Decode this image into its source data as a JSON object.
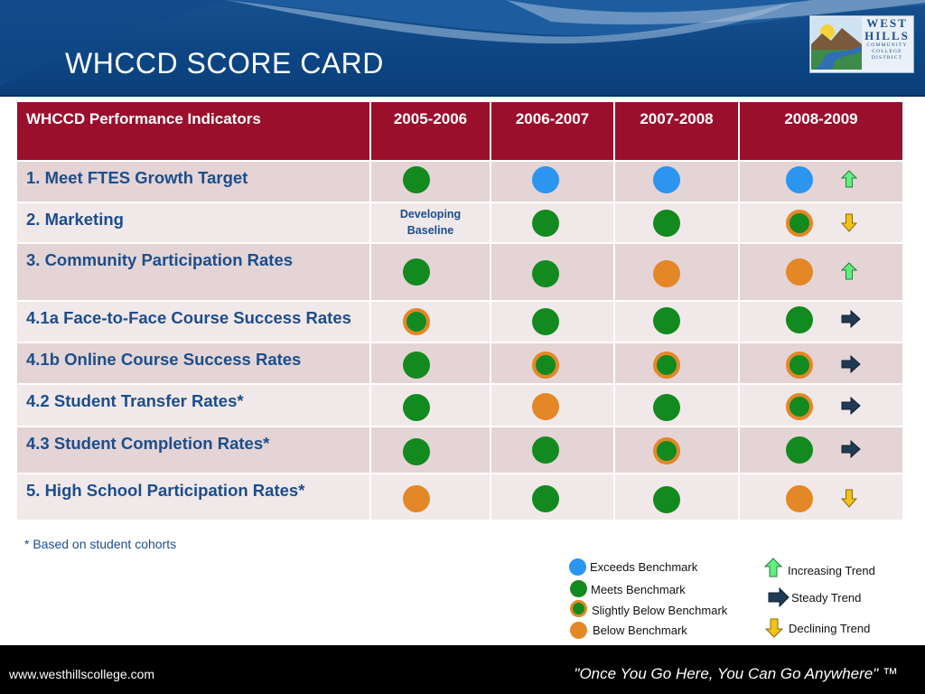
{
  "header": {
    "title": "WHCCD SCORE CARD"
  },
  "logo": {
    "line1": "WEST",
    "line2": "HILLS",
    "line3": "COMMUNITY",
    "line4": "COLLEGE",
    "line5": "DISTRICT"
  },
  "table": {
    "headers": [
      "WHCCD Performance Indicators",
      "2005-2006",
      "2006-2007",
      "2007-2008",
      "2008-2009"
    ],
    "rows": [
      {
        "label": "1. Meet FTES Growth Target",
        "values": [
          "meets",
          "exceeds",
          "exceeds",
          "exceeds"
        ],
        "trend": "increasing"
      },
      {
        "label": "2. Marketing",
        "baseline": "Developing Baseline",
        "values": [
          "baseline",
          "meets",
          "meets",
          "slightly"
        ],
        "trend": "declining"
      },
      {
        "label": "3. Community Participation Rates",
        "values": [
          "meets",
          "meets",
          "below",
          "below"
        ],
        "trend": "increasing"
      },
      {
        "label": "4.1a Face-to-Face Course Success Rates",
        "values": [
          "slightly",
          "meets",
          "meets",
          "meets"
        ],
        "trend": "steady"
      },
      {
        "label": "4.1b Online Course Success Rates",
        "values": [
          "meets",
          "slightly",
          "slightly",
          "slightly"
        ],
        "trend": "steady"
      },
      {
        "label": "4.2 Student Transfer Rates*",
        "values": [
          "meets",
          "below",
          "meets",
          "slightly"
        ],
        "trend": "steady"
      },
      {
        "label": "4.3 Student Completion Rates*",
        "values": [
          "meets",
          "meets",
          "slightly",
          "meets"
        ],
        "trend": "steady"
      },
      {
        "label": "5. High School Participation Rates*",
        "values": [
          "below",
          "meets",
          "meets",
          "below"
        ],
        "trend": "declining"
      }
    ]
  },
  "footnote": "* Based on student cohorts",
  "legend": {
    "exceeds": "Exceeds Benchmark",
    "meets": "Meets Benchmark",
    "slightly": "Slightly Below Benchmark",
    "below": "Below Benchmark",
    "increasing": "Increasing Trend",
    "steady": "Steady Trend",
    "declining": "Declining Trend"
  },
  "colors": {
    "header_bg": "#0d4583",
    "table_header_bg": "#9a0f2c",
    "exceeds": "#2b95f0",
    "meets": "#138a1f",
    "below": "#e48727",
    "increasing_arrow": "#5fef7f",
    "declining_arrow": "#f2c21b",
    "steady_arrow": "#1f3a55"
  },
  "footer": {
    "url": "www.westhillscollege.com",
    "slogan": "\"Once You Go Here, You Can Go Anywhere\" ™"
  }
}
